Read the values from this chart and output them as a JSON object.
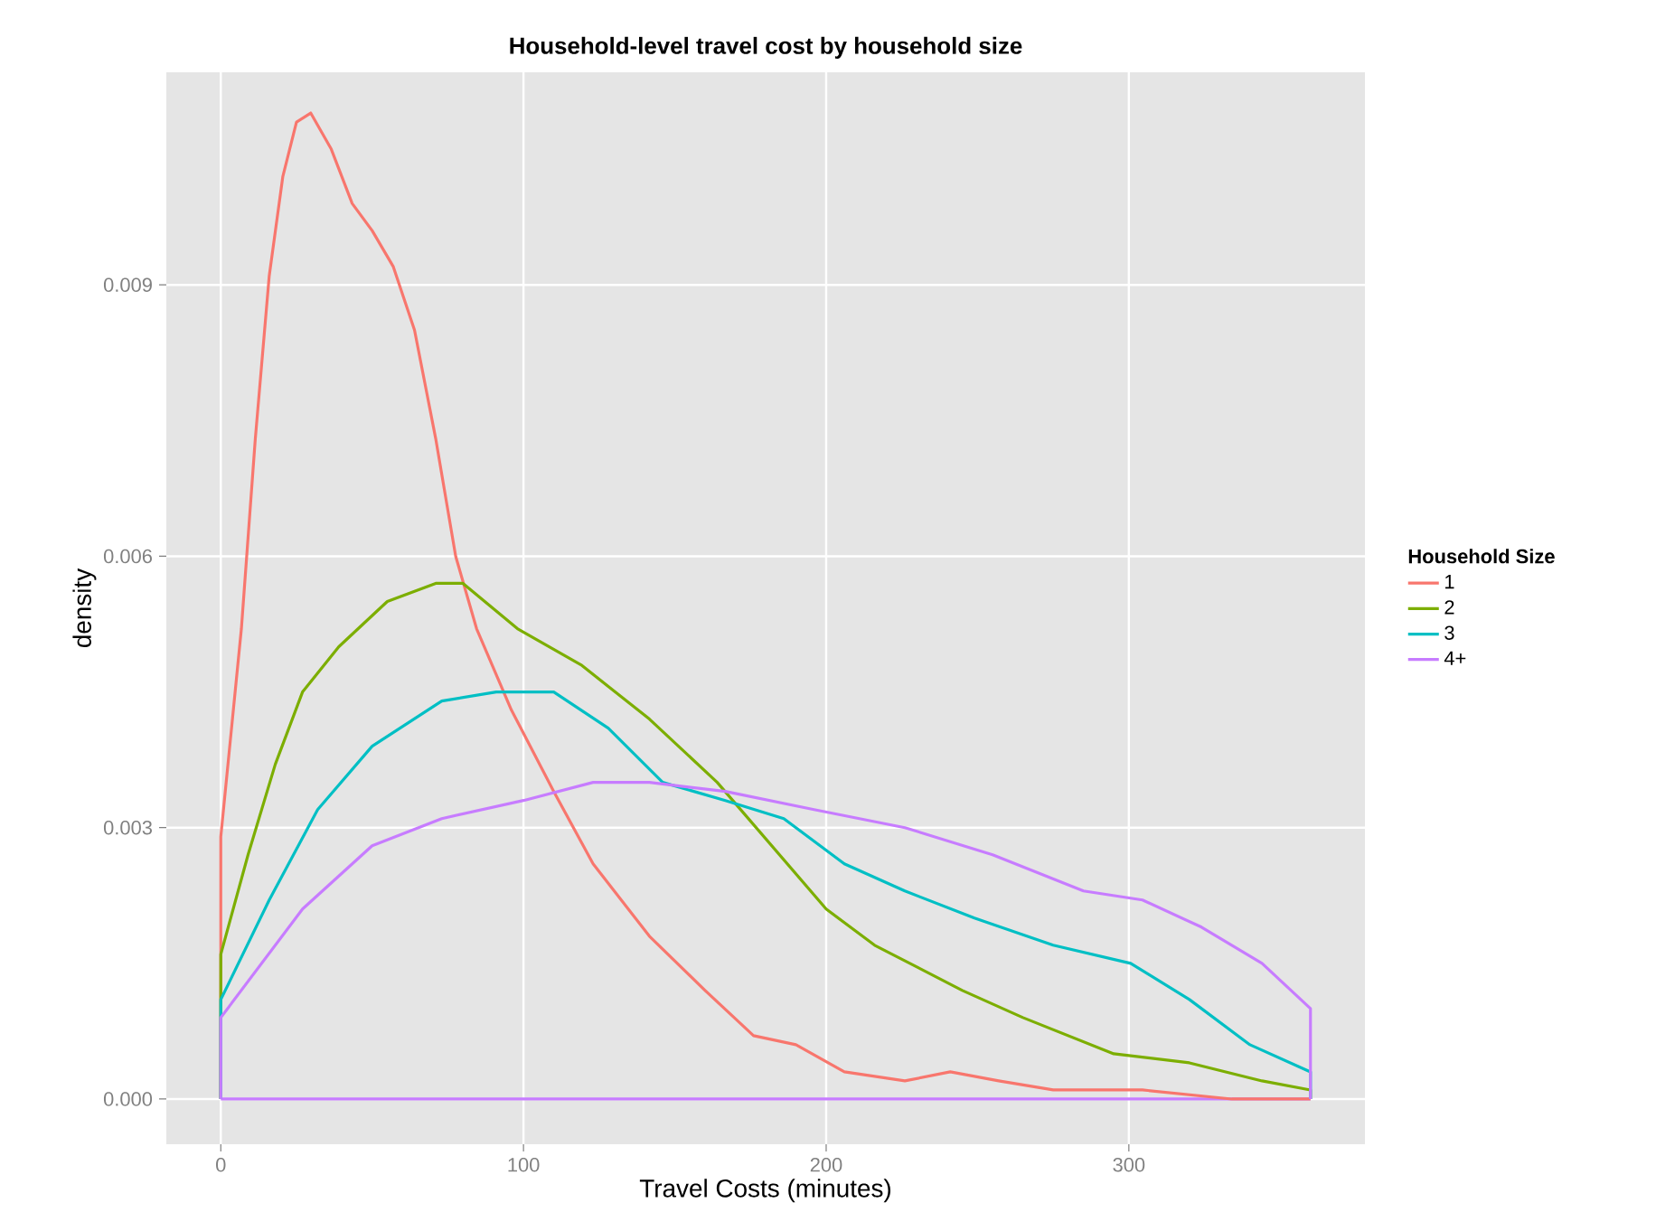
{
  "chart_data": {
    "type": "line",
    "title": "Household-level travel cost by household size",
    "xlabel": "Travel Costs (minutes)",
    "ylabel": "density",
    "legend_title": "Household Size",
    "xlim": [
      -18,
      378
    ],
    "ylim": [
      -0.0005,
      0.01135
    ],
    "xticks": [
      0,
      100,
      200,
      300
    ],
    "yticks": [
      {
        "value": 0,
        "label": "0.000"
      },
      {
        "value": 0.003,
        "label": "0.003"
      },
      {
        "value": 0.006,
        "label": "0.006"
      },
      {
        "value": 0.009,
        "label": "0.009"
      }
    ],
    "grid": true,
    "legend": "right",
    "marker": "none",
    "line_style": "solid",
    "ref_lines": [
      {
        "axis": "y",
        "value": 0,
        "color": "#c77cff"
      }
    ],
    "series": [
      {
        "name": "1",
        "color": "#f8766d",
        "x": [
          0,
          0,
          6.8,
          11.4,
          16,
          20.5,
          25,
          29.7,
          36.5,
          43.4,
          50,
          57,
          64,
          71,
          77.6,
          84.5,
          96,
          110,
          123,
          141.6,
          160,
          176,
          190,
          206,
          226,
          241,
          257,
          275,
          304.5,
          334,
          360
        ],
        "values": [
          0,
          0.0029,
          0.0052,
          0.0073,
          0.0091,
          0.0102,
          0.0108,
          0.0109,
          0.0105,
          0.0099,
          0.0096,
          0.0092,
          0.0085,
          0.0073,
          0.006,
          0.0052,
          0.0043,
          0.0034,
          0.0026,
          0.0018,
          0.0012,
          0.0007,
          0.0006,
          0.0003,
          0.0002,
          0.0003,
          0.0002,
          0.0001,
          0.0001,
          0,
          0
        ]
      },
      {
        "name": "2",
        "color": "#7cae00",
        "x": [
          0,
          0,
          9,
          18,
          27,
          39,
          55,
          71,
          80,
          98,
          119,
          141.6,
          164,
          182,
          200,
          216,
          245,
          265,
          295,
          320,
          344,
          360,
          360
        ],
        "values": [
          0,
          0.0016,
          0.0027,
          0.0037,
          0.0045,
          0.005,
          0.0055,
          0.0057,
          0.0057,
          0.0052,
          0.0048,
          0.0042,
          0.0035,
          0.0028,
          0.0021,
          0.0017,
          0.0012,
          0.0009,
          0.0005,
          0.0004,
          0.0002,
          0.0001,
          0
        ]
      },
      {
        "name": "3",
        "color": "#00bfc4",
        "x": [
          0,
          0,
          16,
          32,
          50,
          73,
          91,
          110,
          128,
          146,
          166.7,
          186,
          206,
          226,
          249,
          275,
          300.6,
          320,
          340,
          360,
          360
        ],
        "values": [
          0,
          0.0011,
          0.0022,
          0.0032,
          0.0039,
          0.0044,
          0.0045,
          0.0045,
          0.0041,
          0.0035,
          0.0033,
          0.0031,
          0.0026,
          0.0023,
          0.002,
          0.0017,
          0.0015,
          0.0011,
          0.0006,
          0.0003,
          0
        ]
      },
      {
        "name": "4+",
        "color": "#c77cff",
        "x": [
          0,
          0,
          27,
          50,
          73,
          100,
          123,
          141.6,
          166.7,
          196,
          226,
          255,
          285,
          304.5,
          324,
          344,
          360,
          360
        ],
        "values": [
          0,
          0.0009,
          0.0021,
          0.0028,
          0.0031,
          0.0033,
          0.0035,
          0.0035,
          0.0034,
          0.0032,
          0.003,
          0.0027,
          0.0023,
          0.0022,
          0.0019,
          0.0015,
          0.001,
          0
        ]
      }
    ]
  }
}
